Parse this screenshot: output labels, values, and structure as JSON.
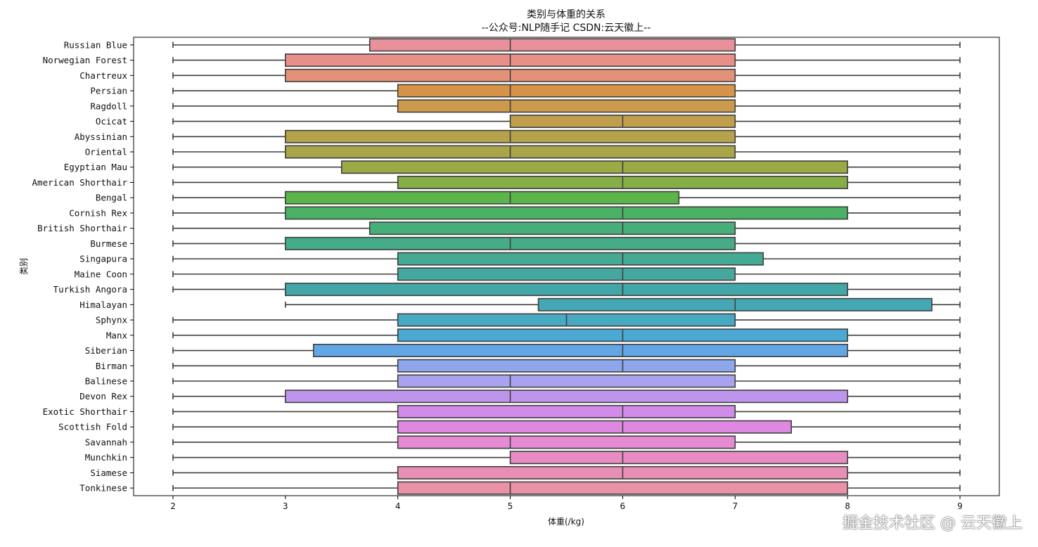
{
  "chart_data": {
    "type": "boxplot",
    "orientation": "horizontal",
    "title": "类别与体重的关系",
    "subtitle": "--公众号:NLP随手记  CSDN:云天徽上--",
    "xlabel": "体重(/kg)",
    "ylabel": "类别",
    "xlim": [
      1.65,
      9.35
    ],
    "xticks": [
      2,
      3,
      4,
      5,
      6,
      7,
      8,
      9
    ],
    "grid": false,
    "categories": [
      "Russian Blue",
      "Norwegian Forest",
      "Chartreux",
      "Persian",
      "Ragdoll",
      "Ocicat",
      "Abyssinian",
      "Oriental",
      "Egyptian Mau",
      "American Shorthair",
      "Bengal",
      "Cornish Rex",
      "British Shorthair",
      "Burmese",
      "Singapura",
      "Maine Coon",
      "Turkish Angora",
      "Himalayan",
      "Sphynx",
      "Manx",
      "Siberian",
      "Birman",
      "Balinese",
      "Devon Rex",
      "Exotic Shorthair",
      "Scottish Fold",
      "Savannah",
      "Munchkin",
      "Siamese",
      "Tonkinese"
    ],
    "boxes": [
      {
        "min": 2,
        "q1": 3.75,
        "median": 5,
        "q3": 7,
        "max": 9,
        "color": "#e8919a"
      },
      {
        "min": 2,
        "q1": 3,
        "median": 5,
        "q3": 7,
        "max": 9,
        "color": "#e88f8a"
      },
      {
        "min": 2,
        "q1": 3,
        "median": 5,
        "q3": 7,
        "max": 9,
        "color": "#e4917a"
      },
      {
        "min": 2,
        "q1": 4,
        "median": 5,
        "q3": 7,
        "max": 9,
        "color": "#d79448"
      },
      {
        "min": 2,
        "q1": 4,
        "median": 5,
        "q3": 7,
        "max": 9,
        "color": "#cc9a4c"
      },
      {
        "min": 2,
        "q1": 5,
        "median": 6,
        "q3": 7,
        "max": 9,
        "color": "#c19e4c"
      },
      {
        "min": 2,
        "q1": 3,
        "median": 5,
        "q3": 7,
        "max": 9,
        "color": "#b5a24a"
      },
      {
        "min": 2,
        "q1": 3,
        "median": 5,
        "q3": 7,
        "max": 9,
        "color": "#a9a548"
      },
      {
        "min": 2,
        "q1": 3.5,
        "median": 6,
        "q3": 8,
        "max": 9,
        "color": "#9ca945"
      },
      {
        "min": 2,
        "q1": 4,
        "median": 6,
        "q3": 8,
        "max": 9,
        "color": "#85ae46"
      },
      {
        "min": 2,
        "q1": 3,
        "median": 5,
        "q3": 6.5,
        "max": 9,
        "color": "#5bb54a"
      },
      {
        "min": 2,
        "q1": 3,
        "median": 6,
        "q3": 8,
        "max": 9,
        "color": "#4bb164"
      },
      {
        "min": 2,
        "q1": 3.75,
        "median": 6,
        "q3": 7,
        "max": 9,
        "color": "#48ae79"
      },
      {
        "min": 2,
        "q1": 3,
        "median": 5,
        "q3": 7,
        "max": 9,
        "color": "#46ac88"
      },
      {
        "min": 2,
        "q1": 4,
        "median": 6,
        "q3": 7.25,
        "max": 9,
        "color": "#45aa94"
      },
      {
        "min": 2,
        "q1": 4,
        "median": 6,
        "q3": 7,
        "max": 9,
        "color": "#45a89f"
      },
      {
        "min": 2,
        "q1": 3,
        "median": 6,
        "q3": 8,
        "max": 9,
        "color": "#43a7a9"
      },
      {
        "min": 3,
        "q1": 5.25,
        "median": 7,
        "q3": 8.75,
        "max": 9,
        "color": "#44a8b4"
      },
      {
        "min": 2,
        "q1": 4,
        "median": 5.5,
        "q3": 7,
        "max": 9,
        "color": "#47aac2"
      },
      {
        "min": 2,
        "q1": 4,
        "median": 6,
        "q3": 8,
        "max": 9,
        "color": "#4aa8d2"
      },
      {
        "min": 2,
        "q1": 3.25,
        "median": 6,
        "q3": 8,
        "max": 9,
        "color": "#62a7e4"
      },
      {
        "min": 2,
        "q1": 4,
        "median": 6,
        "q3": 7,
        "max": 9,
        "color": "#8da6ec"
      },
      {
        "min": 2,
        "q1": 4,
        "median": 5,
        "q3": 7,
        "max": 9,
        "color": "#a9a2ee"
      },
      {
        "min": 2,
        "q1": 3,
        "median": 5,
        "q3": 8,
        "max": 9,
        "color": "#bd95ec"
      },
      {
        "min": 2,
        "q1": 4,
        "median": 6,
        "q3": 7,
        "max": 9,
        "color": "#d18cea"
      },
      {
        "min": 2,
        "q1": 4,
        "median": 6,
        "q3": 7.5,
        "max": 9,
        "color": "#df88e2"
      },
      {
        "min": 2,
        "q1": 4,
        "median": 5,
        "q3": 7,
        "max": 9,
        "color": "#e68ad4"
      },
      {
        "min": 2,
        "q1": 5,
        "median": 6,
        "q3": 8,
        "max": 9,
        "color": "#e78dc4"
      },
      {
        "min": 2,
        "q1": 4,
        "median": 6,
        "q3": 8,
        "max": 9,
        "color": "#e88fb6"
      },
      {
        "min": 2,
        "q1": 4,
        "median": 5,
        "q3": 8,
        "max": 9,
        "color": "#e891a8"
      }
    ]
  },
  "watermark": "掘金技术社区 @ 云天徽上"
}
